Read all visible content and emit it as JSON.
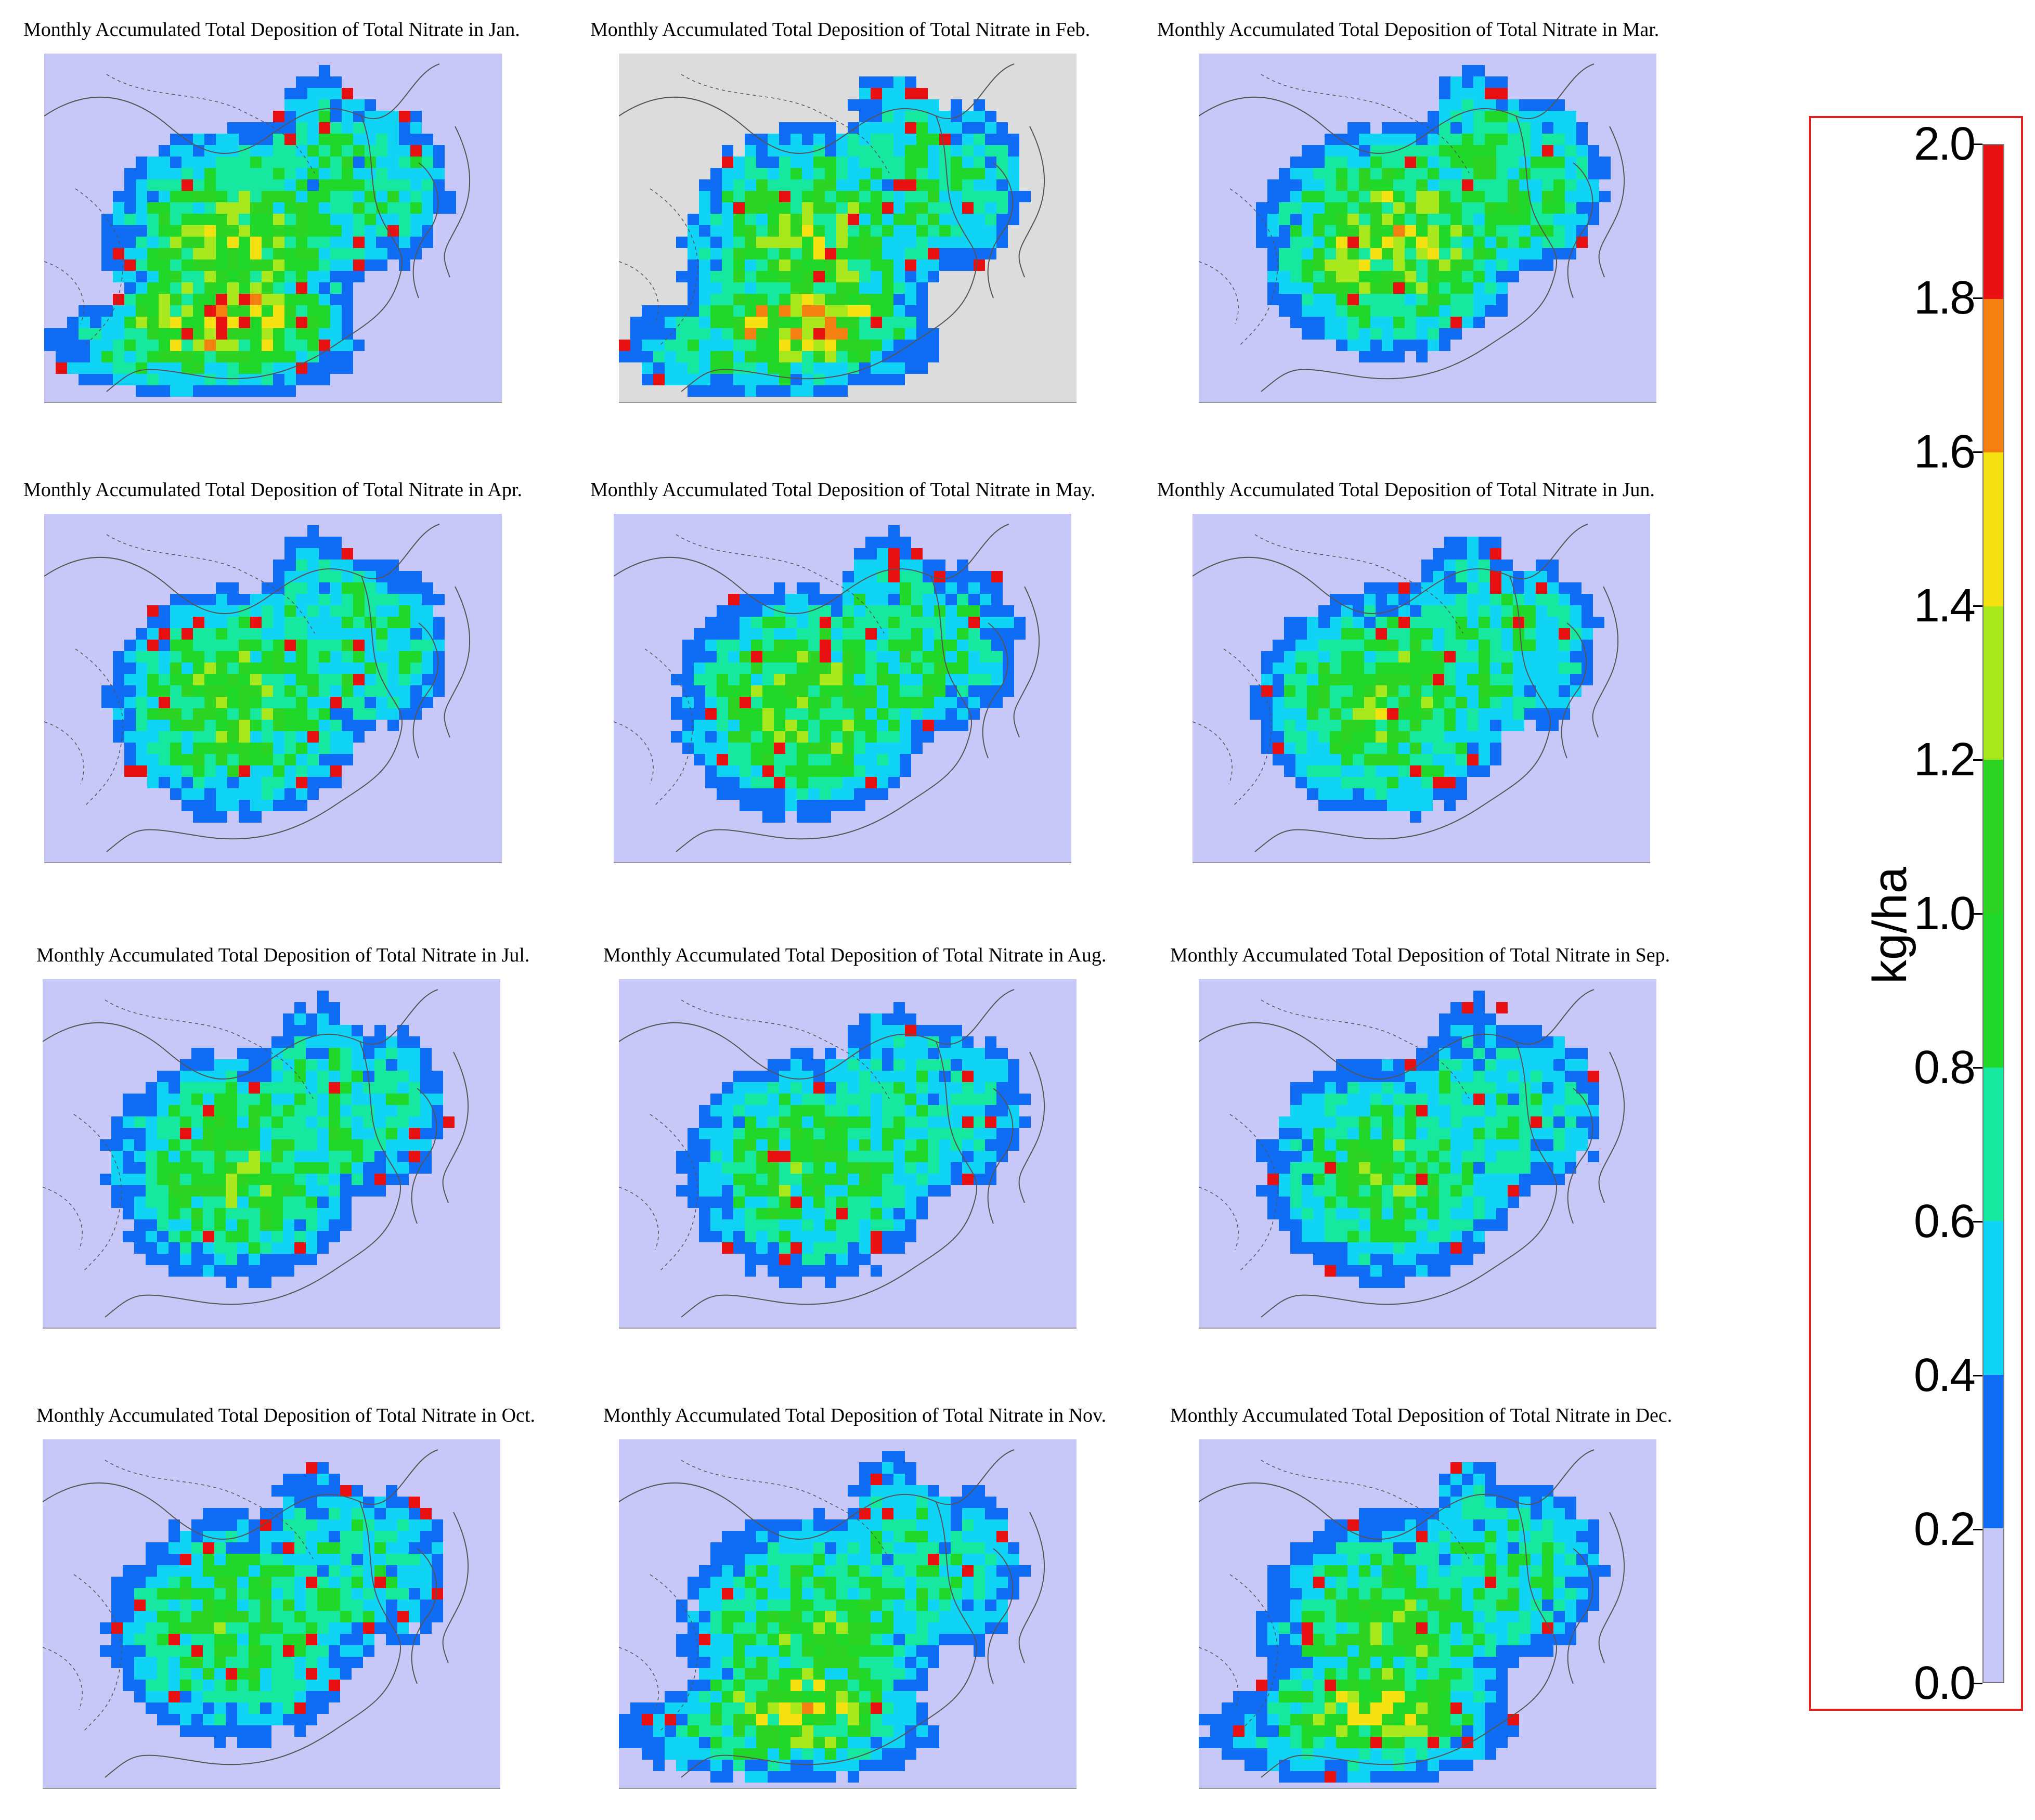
{
  "colors": {
    "ocean": "#c8c8f8",
    "land_feb": "#dcdcdc",
    "coast": "#555555"
  },
  "panels": [
    {
      "title": "Monthly Accumulated Total Deposition of Total Nitrate in Jan.",
      "month": "Jan",
      "intensity": 0.55
    },
    {
      "title": "Monthly Accumulated Total Deposition of Total Nitrate in Feb.",
      "month": "Feb",
      "intensity": 0.55
    },
    {
      "title": "Monthly Accumulated Total Deposition of Total Nitrate in Mar.",
      "month": "Mar",
      "intensity": 0.65
    },
    {
      "title": "Monthly Accumulated Total Deposition of Total Nitrate in Apr.",
      "month": "Apr",
      "intensity": 0.5
    },
    {
      "title": "Monthly Accumulated Total Deposition of Total Nitrate in May.",
      "month": "May",
      "intensity": 0.55
    },
    {
      "title": "Monthly Accumulated Total Deposition of Total Nitrate in Jun.",
      "month": "Jun",
      "intensity": 0.5
    },
    {
      "title": "Monthly Accumulated Total Deposition of Total Nitrate in Jul.",
      "month": "Jul",
      "intensity": 0.45
    },
    {
      "title": "Monthly Accumulated Total Deposition of Total Nitrate in Aug.",
      "month": "Aug",
      "intensity": 0.4
    },
    {
      "title": "Monthly Accumulated Total Deposition of Total Nitrate in Sep.",
      "month": "Sep",
      "intensity": 0.4
    },
    {
      "title": "Monthly Accumulated Total Deposition of Total Nitrate in Oct.",
      "month": "Oct",
      "intensity": 0.38
    },
    {
      "title": "Monthly Accumulated Total Deposition of Total Nitrate in Nov.",
      "month": "Nov",
      "intensity": 0.42
    },
    {
      "title": "Monthly Accumulated Total Deposition of Total Nitrate in Dec.",
      "month": "Dec",
      "intensity": 0.45
    }
  ],
  "legend": {
    "unit": "kg/ha",
    "ticks": [
      "0.0",
      "0.2",
      "0.4",
      "0.6",
      "0.8",
      "1.0",
      "1.2",
      "1.4",
      "1.6",
      "1.8",
      "2.0"
    ],
    "range": [
      0.0,
      2.0
    ],
    "bins": [
      {
        "from": 0.0,
        "to": 0.2,
        "color": "#c8c8f8"
      },
      {
        "from": 0.2,
        "to": 0.4,
        "color": "#0f6cf5"
      },
      {
        "from": 0.4,
        "to": 0.6,
        "color": "#10d4f5"
      },
      {
        "from": 0.6,
        "to": 0.8,
        "color": "#16e8a0"
      },
      {
        "from": 0.8,
        "to": 1.0,
        "color": "#1fd82a"
      },
      {
        "from": 1.0,
        "to": 1.2,
        "color": "#2ed424"
      },
      {
        "from": 1.2,
        "to": 1.4,
        "color": "#a8e81c"
      },
      {
        "from": 1.4,
        "to": 1.6,
        "color": "#f5e012"
      },
      {
        "from": 1.6,
        "to": 1.8,
        "color": "#f58012"
      },
      {
        "from": 1.8,
        "to": 2.0,
        "color": "#e81010"
      }
    ]
  }
}
